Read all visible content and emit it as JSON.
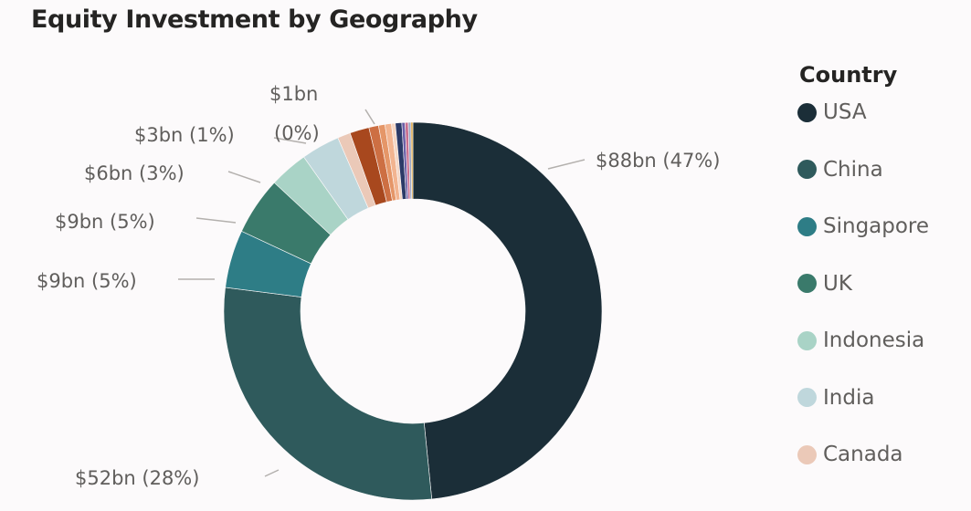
{
  "title": "Equity Investment by Geography",
  "legend": {
    "title": "Country",
    "items": [
      {
        "label": "USA",
        "color": "#1b2e38"
      },
      {
        "label": "China",
        "color": "#2f5a5c"
      },
      {
        "label": "Singapore",
        "color": "#2e7d86"
      },
      {
        "label": "UK",
        "color": "#3a7a6b"
      },
      {
        "label": "Indonesia",
        "color": "#a9d3c6"
      },
      {
        "label": "India",
        "color": "#bfd7dc"
      },
      {
        "label": "Canada",
        "color": "#ebc9b8"
      }
    ]
  },
  "chart_data": {
    "type": "pie",
    "donut": true,
    "title": "Equity Investment by Geography",
    "legend_title": "Country",
    "legend_position": "right",
    "slices": [
      {
        "name": "USA",
        "value": 88,
        "percent": 47,
        "label": "$88bn (47%)",
        "color": "#1b2e38"
      },
      {
        "name": "China",
        "value": 52,
        "percent": 28,
        "label": "$52bn (28%)",
        "color": "#2f5a5c"
      },
      {
        "name": "Singapore",
        "value": 9,
        "percent": 5,
        "label": "$9bn (5%)",
        "color": "#2e7d86"
      },
      {
        "name": "UK",
        "value": 9,
        "percent": 5,
        "label": "$9bn (5%)",
        "color": "#3a7a6b"
      },
      {
        "name": "Indonesia",
        "value": 6,
        "percent": 3,
        "label": "$6bn (3%)",
        "color": "#a9d3c6"
      },
      {
        "name": "India",
        "value": 6,
        "percent": 3,
        "label": "",
        "color": "#bfd7dc"
      },
      {
        "name": "Canada",
        "value": 2,
        "percent": 1,
        "label": "",
        "color": "#ebc9b8"
      },
      {
        "name": "",
        "value": 3,
        "percent": 1,
        "label": "$3bn (1%)",
        "color": "#a8481e"
      },
      {
        "name": "",
        "value": 1.5,
        "percent": 1,
        "label": "",
        "color": "#cd6f43"
      },
      {
        "name": "",
        "value": 1,
        "percent": 1,
        "label": "",
        "color": "#e59668"
      },
      {
        "name": "",
        "value": 1,
        "percent": 0,
        "label": "",
        "color": "#f2b490"
      },
      {
        "name": "",
        "value": 0.6,
        "percent": 0,
        "label": "",
        "color": "#f5d6c4"
      },
      {
        "name": "",
        "value": 1,
        "percent": 0,
        "label": "$1bn (0%)",
        "color": "#2b3a67"
      },
      {
        "name": "",
        "value": 0.5,
        "percent": 0,
        "label": "",
        "color": "#6b5fa6"
      },
      {
        "name": "",
        "value": 0.5,
        "percent": 0,
        "label": "",
        "color": "#c96f8f"
      },
      {
        "name": "",
        "value": 0.4,
        "percent": 0,
        "label": "",
        "color": "#9aa5c4"
      },
      {
        "name": "",
        "value": 0.3,
        "percent": 0,
        "label": "",
        "color": "#d9a441"
      }
    ]
  }
}
